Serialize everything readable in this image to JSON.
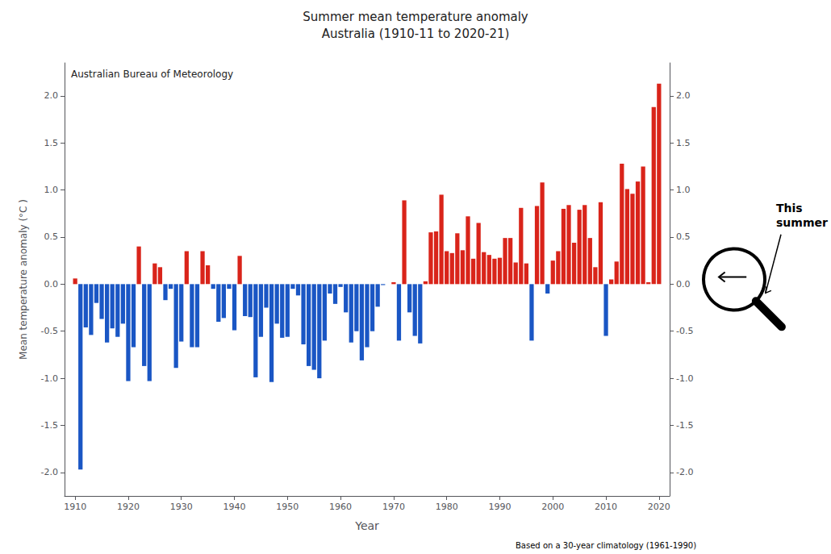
{
  "chart_data": {
    "type": "bar",
    "title": "Summer mean temperature anomaly",
    "subtitle": "Australia (1910-11 to 2020-21)",
    "xlabel": "Year",
    "ylabel": "Mean temperature anomaly (°C )",
    "annotations": [
      "Australian Bureau of Meteorology",
      "Based on a 30-year climatology (1961-1990)",
      "This\nsummer"
    ],
    "x": [
      1910,
      1911,
      1912,
      1913,
      1914,
      1915,
      1916,
      1917,
      1918,
      1919,
      1920,
      1921,
      1922,
      1923,
      1924,
      1925,
      1926,
      1927,
      1928,
      1929,
      1930,
      1931,
      1932,
      1933,
      1934,
      1935,
      1936,
      1937,
      1938,
      1939,
      1940,
      1941,
      1942,
      1943,
      1944,
      1945,
      1946,
      1947,
      1948,
      1949,
      1950,
      1951,
      1952,
      1953,
      1954,
      1955,
      1956,
      1957,
      1958,
      1959,
      1960,
      1961,
      1962,
      1963,
      1964,
      1965,
      1966,
      1967,
      1968,
      1969,
      1970,
      1971,
      1972,
      1973,
      1974,
      1975,
      1976,
      1977,
      1978,
      1979,
      1980,
      1981,
      1982,
      1983,
      1984,
      1985,
      1986,
      1987,
      1988,
      1989,
      1990,
      1991,
      1992,
      1993,
      1994,
      1995,
      1996,
      1997,
      1998,
      1999,
      2000,
      2001,
      2002,
      2003,
      2004,
      2005,
      2006,
      2007,
      2008,
      2009,
      2010,
      2011,
      2012,
      2013,
      2014,
      2015,
      2016,
      2017,
      2018,
      2019,
      2020
    ],
    "values": [
      0.06,
      -1.97,
      -0.46,
      -0.54,
      -0.2,
      -0.37,
      -0.62,
      -0.47,
      -0.56,
      -0.42,
      -1.03,
      -0.67,
      0.4,
      -0.87,
      -1.03,
      0.22,
      0.18,
      -0.17,
      -0.05,
      -0.89,
      -0.61,
      0.35,
      -0.67,
      -0.67,
      0.35,
      0.2,
      -0.05,
      -0.4,
      -0.36,
      -0.05,
      -0.49,
      0.3,
      -0.34,
      -0.35,
      -0.99,
      -0.56,
      -0.25,
      -1.04,
      -0.42,
      -0.57,
      -0.56,
      -0.05,
      -0.12,
      -0.64,
      -0.87,
      -0.91,
      -1.0,
      -0.6,
      -0.1,
      -0.21,
      -0.03,
      -0.3,
      -0.62,
      -0.5,
      -0.81,
      -0.67,
      -0.5,
      -0.24,
      -0.01,
      0.0,
      0.02,
      -0.6,
      0.89,
      -0.3,
      -0.55,
      -0.63,
      0.03,
      0.55,
      0.56,
      0.95,
      0.35,
      0.33,
      0.54,
      0.36,
      0.72,
      0.27,
      0.65,
      0.34,
      0.31,
      0.27,
      0.28,
      0.49,
      0.49,
      0.23,
      0.81,
      0.22,
      -0.6,
      0.83,
      1.08,
      -0.1,
      0.25,
      0.35,
      0.8,
      0.84,
      0.44,
      0.79,
      0.84,
      0.49,
      0.18,
      0.87,
      -0.55,
      0.05,
      0.24,
      1.28,
      1.01,
      0.96,
      1.09,
      1.25,
      0.02,
      1.88,
      2.13
    ],
    "colors": [
      "#d9241a",
      "#1a56c4",
      "#1a56c4",
      "#1a56c4",
      "#1a56c4",
      "#1a56c4",
      "#1a56c4",
      "#1a56c4",
      "#1a56c4",
      "#1a56c4",
      "#1a56c4",
      "#1a56c4",
      "#d9241a",
      "#1a56c4",
      "#1a56c4",
      "#d9241a",
      "#d9241a",
      "#1a56c4",
      "#1a56c4",
      "#1a56c4",
      "#1a56c4",
      "#d9241a",
      "#1a56c4",
      "#1a56c4",
      "#d9241a",
      "#d9241a",
      "#1a56c4",
      "#1a56c4",
      "#1a56c4",
      "#1a56c4",
      "#1a56c4",
      "#d9241a",
      "#1a56c4",
      "#1a56c4",
      "#1a56c4",
      "#1a56c4",
      "#1a56c4",
      "#1a56c4",
      "#1a56c4",
      "#1a56c4",
      "#1a56c4",
      "#1a56c4",
      "#1a56c4",
      "#1a56c4",
      "#1a56c4",
      "#1a56c4",
      "#1a56c4",
      "#1a56c4",
      "#1a56c4",
      "#1a56c4",
      "#1a56c4",
      "#1a56c4",
      "#1a56c4",
      "#1a56c4",
      "#1a56c4",
      "#1a56c4",
      "#1a56c4",
      "#1a56c4",
      "#1a56c4",
      "#d9241a",
      "#d9241a",
      "#1a56c4",
      "#d9241a",
      "#1a56c4",
      "#1a56c4",
      "#1a56c4",
      "#d9241a",
      "#d9241a",
      "#d9241a",
      "#d9241a",
      "#d9241a",
      "#d9241a",
      "#d9241a",
      "#d9241a",
      "#d9241a",
      "#d9241a",
      "#d9241a",
      "#d9241a",
      "#d9241a",
      "#d9241a",
      "#d9241a",
      "#d9241a",
      "#d9241a",
      "#d9241a",
      "#d9241a",
      "#d9241a",
      "#1a56c4",
      "#d9241a",
      "#d9241a",
      "#1a56c4",
      "#d9241a",
      "#d9241a",
      "#d9241a",
      "#d9241a",
      "#d9241a",
      "#d9241a",
      "#d9241a",
      "#d9241a",
      "#d9241a",
      "#d9241a",
      "#1a56c4",
      "#d9241a",
      "#d9241a",
      "#d9241a",
      "#d9241a",
      "#d9241a",
      "#d9241a",
      "#d9241a",
      "#d9241a",
      "#d9241a",
      "#d9241a"
    ],
    "xlim": [
      1908,
      2022
    ],
    "xticks": [
      1910,
      1920,
      1930,
      1940,
      1950,
      1960,
      1970,
      1980,
      1990,
      2000,
      2010,
      2020
    ],
    "ylim": [
      -2.25,
      2.35
    ],
    "yticks": [
      {
        "value": -2.0,
        "label": "-2.0"
      },
      -1.5,
      {
        "value": -1.0,
        "label": "-1.0"
      },
      -0.5,
      {
        "value": 0.0,
        "label": "0.0"
      },
      0.5,
      {
        "value": 1.0,
        "label": "1.0"
      },
      1.5,
      {
        "value": 2.0,
        "label": "2.0"
      }
    ],
    "y2lim": [
      -2.25,
      2.35
    ],
    "y2ticks": [
      {
        "value": -2.0,
        "label": "-2.0"
      },
      -1.5,
      {
        "value": -1.0,
        "label": "-1.0"
      },
      -0.5,
      {
        "value": 0.0,
        "label": "0.0"
      },
      0.5,
      {
        "value": 1.0,
        "label": "1.0"
      },
      1.5,
      {
        "value": 2.0,
        "label": "2.0"
      }
    ],
    "grid": false
  }
}
